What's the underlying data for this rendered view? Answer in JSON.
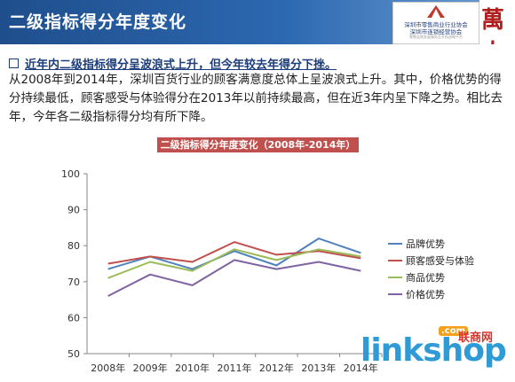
{
  "header": {
    "title": "二级指标得分年度变化",
    "logo_line1": "深圳市零售商业行业协会",
    "logo_line2": "深圳市连锁经营协会",
    "logo_line3": "零售连锁发展服务及开拓战略平台",
    "logo_right": "萬人"
  },
  "bullet": "近年内二级指标得分呈波浪式上升，但今年较去年得分下挫。",
  "paragraph": "从2008年到2014年，深圳百货行业的顾客满意度总体上呈波浪式上升。其中，价格优势的得分持续最低，顾客感受与体验得分在2013年以前持续最高，但在近3年内呈下降之势。相比去年，今年各二级指标得分均有所下降。",
  "watermark": {
    "text": "linkshop",
    "com": ".com",
    "cn": "联商网"
  },
  "chart_data": {
    "type": "line",
    "title": "二级指标得分年度变化（2008年-2014年）",
    "categories": [
      "2008年",
      "2009年",
      "2010年",
      "2011年",
      "2012年",
      "2013年",
      "2014年"
    ],
    "ylim": [
      50,
      100
    ],
    "yticks": [
      "50",
      "60",
      "70",
      "80",
      "90",
      "100"
    ],
    "grid": false,
    "legend_position": "right",
    "series": [
      {
        "name": "品牌优势",
        "color": "#4f81bd",
        "values": [
          73.5,
          77.0,
          73.5,
          78.5,
          74.5,
          82.0,
          78.0
        ]
      },
      {
        "name": "顾客感受与体验",
        "color": "#c0504d",
        "values": [
          75.0,
          77.0,
          75.5,
          81.0,
          77.5,
          78.5,
          76.5
        ]
      },
      {
        "name": "商品优势",
        "color": "#9bbb59",
        "values": [
          71.0,
          75.5,
          73.0,
          79.0,
          76.0,
          79.0,
          77.0
        ]
      },
      {
        "name": "价格优势",
        "color": "#8064a2",
        "values": [
          66.0,
          72.0,
          69.0,
          76.0,
          73.5,
          75.5,
          73.0
        ]
      }
    ]
  }
}
